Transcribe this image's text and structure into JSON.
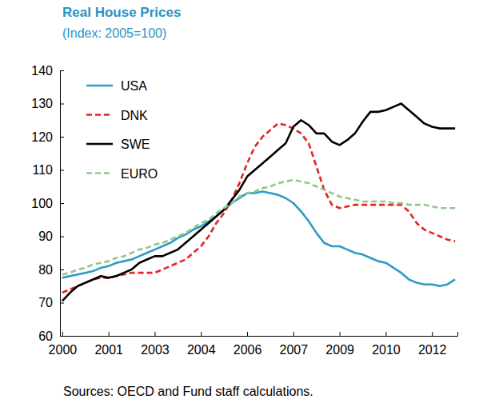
{
  "chart_data": {
    "type": "line",
    "title": "Real House Prices",
    "subtitle": "(Index: 2005=100)",
    "source": "Sources: OECD and Fund staff calculations.",
    "categories": [
      "2000",
      null,
      null,
      null,
      null,
      null,
      "2001",
      null,
      null,
      null,
      null,
      null,
      "2003",
      null,
      null,
      null,
      null,
      null,
      "2004",
      null,
      null,
      null,
      null,
      null,
      "2006",
      null,
      null,
      null,
      null,
      null,
      "2007",
      null,
      null,
      null,
      null,
      null,
      "2009",
      null,
      null,
      null,
      null,
      null,
      "2010",
      null,
      null,
      null,
      null,
      null,
      "2012",
      null,
      null,
      null
    ],
    "series": [
      {
        "name": "USA",
        "color": "#2E9AC8",
        "line_style": "solid",
        "values": [
          77.5,
          78,
          78.5,
          79,
          79.5,
          80.5,
          81,
          82,
          82.5,
          83,
          84,
          85,
          86,
          87,
          88,
          89.5,
          90.5,
          92,
          93,
          94.5,
          96,
          98,
          100,
          101.5,
          103,
          103,
          103.5,
          103,
          102.5,
          101.5,
          100,
          97.5,
          94.5,
          91,
          88,
          87,
          87,
          86,
          85,
          84.5,
          83.5,
          82.5,
          82,
          80.5,
          79,
          77,
          76,
          75.5,
          75.5,
          75,
          75.5,
          77
        ]
      },
      {
        "name": "DNK",
        "color": "#E6231F",
        "line_style": "dashed",
        "values": [
          73,
          74,
          75,
          76,
          77,
          77.5,
          77.5,
          78,
          78.5,
          79,
          79,
          79,
          79,
          80,
          81,
          82,
          83,
          85,
          87,
          90,
          94,
          97,
          101,
          106,
          112,
          117,
          120,
          122,
          124,
          123.5,
          122.5,
          121,
          118,
          111,
          104,
          99.5,
          98.5,
          99,
          99.5,
          99.5,
          99.5,
          99.5,
          99.5,
          99.5,
          99.5,
          97.5,
          94,
          92,
          91,
          90,
          89,
          88.5
        ]
      },
      {
        "name": "SWE",
        "color": "#000000",
        "line_style": "solid",
        "values": [
          70.5,
          73,
          75,
          76,
          77,
          78,
          77.5,
          78,
          79,
          80,
          82,
          83,
          84,
          84,
          85,
          86,
          88,
          90,
          92,
          94,
          96,
          98,
          101,
          104,
          108,
          110,
          112,
          114,
          116,
          118,
          123,
          125,
          123.5,
          121,
          121,
          118.5,
          117.5,
          119,
          121,
          124.5,
          127.5,
          127.5,
          128,
          129,
          130,
          128,
          126,
          124,
          123,
          122.5,
          122.5,
          122.5
        ]
      },
      {
        "name": "EURO",
        "color": "#8DC98A",
        "line_style": "dashed",
        "values": [
          78.5,
          79,
          80,
          80.5,
          81.5,
          82,
          82.5,
          83.5,
          84,
          85,
          86,
          86.5,
          87.5,
          88,
          89,
          90,
          91,
          92.5,
          94,
          95,
          97,
          98.5,
          100,
          102,
          103,
          103.5,
          104.5,
          105,
          106,
          106.5,
          107,
          106.5,
          106,
          105,
          104,
          103,
          102,
          101.5,
          101,
          100.5,
          100.5,
          100.5,
          100.5,
          100,
          100,
          99.5,
          99.5,
          99.5,
          99,
          98.5,
          98.5,
          98.5
        ]
      }
    ],
    "ylim": [
      60,
      140
    ],
    "yticks": [
      60,
      70,
      80,
      90,
      100,
      110,
      120,
      130,
      140
    ],
    "grid": false,
    "legend": "upper left"
  }
}
